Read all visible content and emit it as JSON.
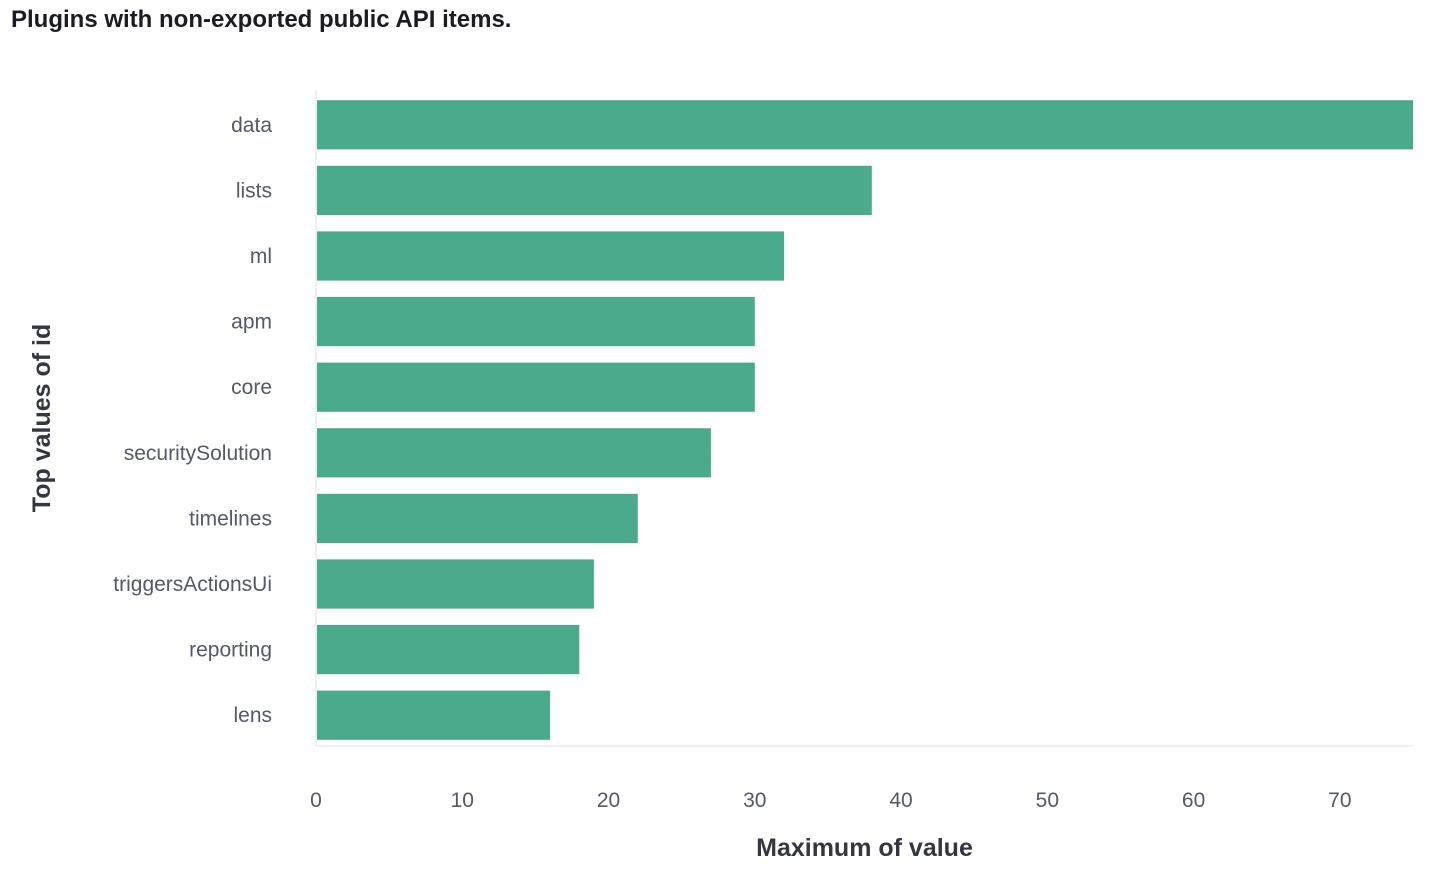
{
  "title": "Plugins with non-exported public API items.",
  "chart_data": {
    "type": "bar",
    "orientation": "horizontal",
    "categories": [
      "data",
      "lists",
      "ml",
      "apm",
      "core",
      "securitySolution",
      "timelines",
      "triggersActionsUi",
      "reporting",
      "lens"
    ],
    "values": [
      75,
      38,
      32,
      30,
      30,
      27,
      22,
      19,
      18,
      16
    ],
    "xlabel": "Maximum of value",
    "ylabel": "Top values of id",
    "xlim": [
      0,
      75
    ],
    "xticks": [
      0,
      10,
      20,
      30,
      40,
      50,
      60,
      70
    ],
    "grid": false,
    "bar_color": "#4ba98c"
  }
}
